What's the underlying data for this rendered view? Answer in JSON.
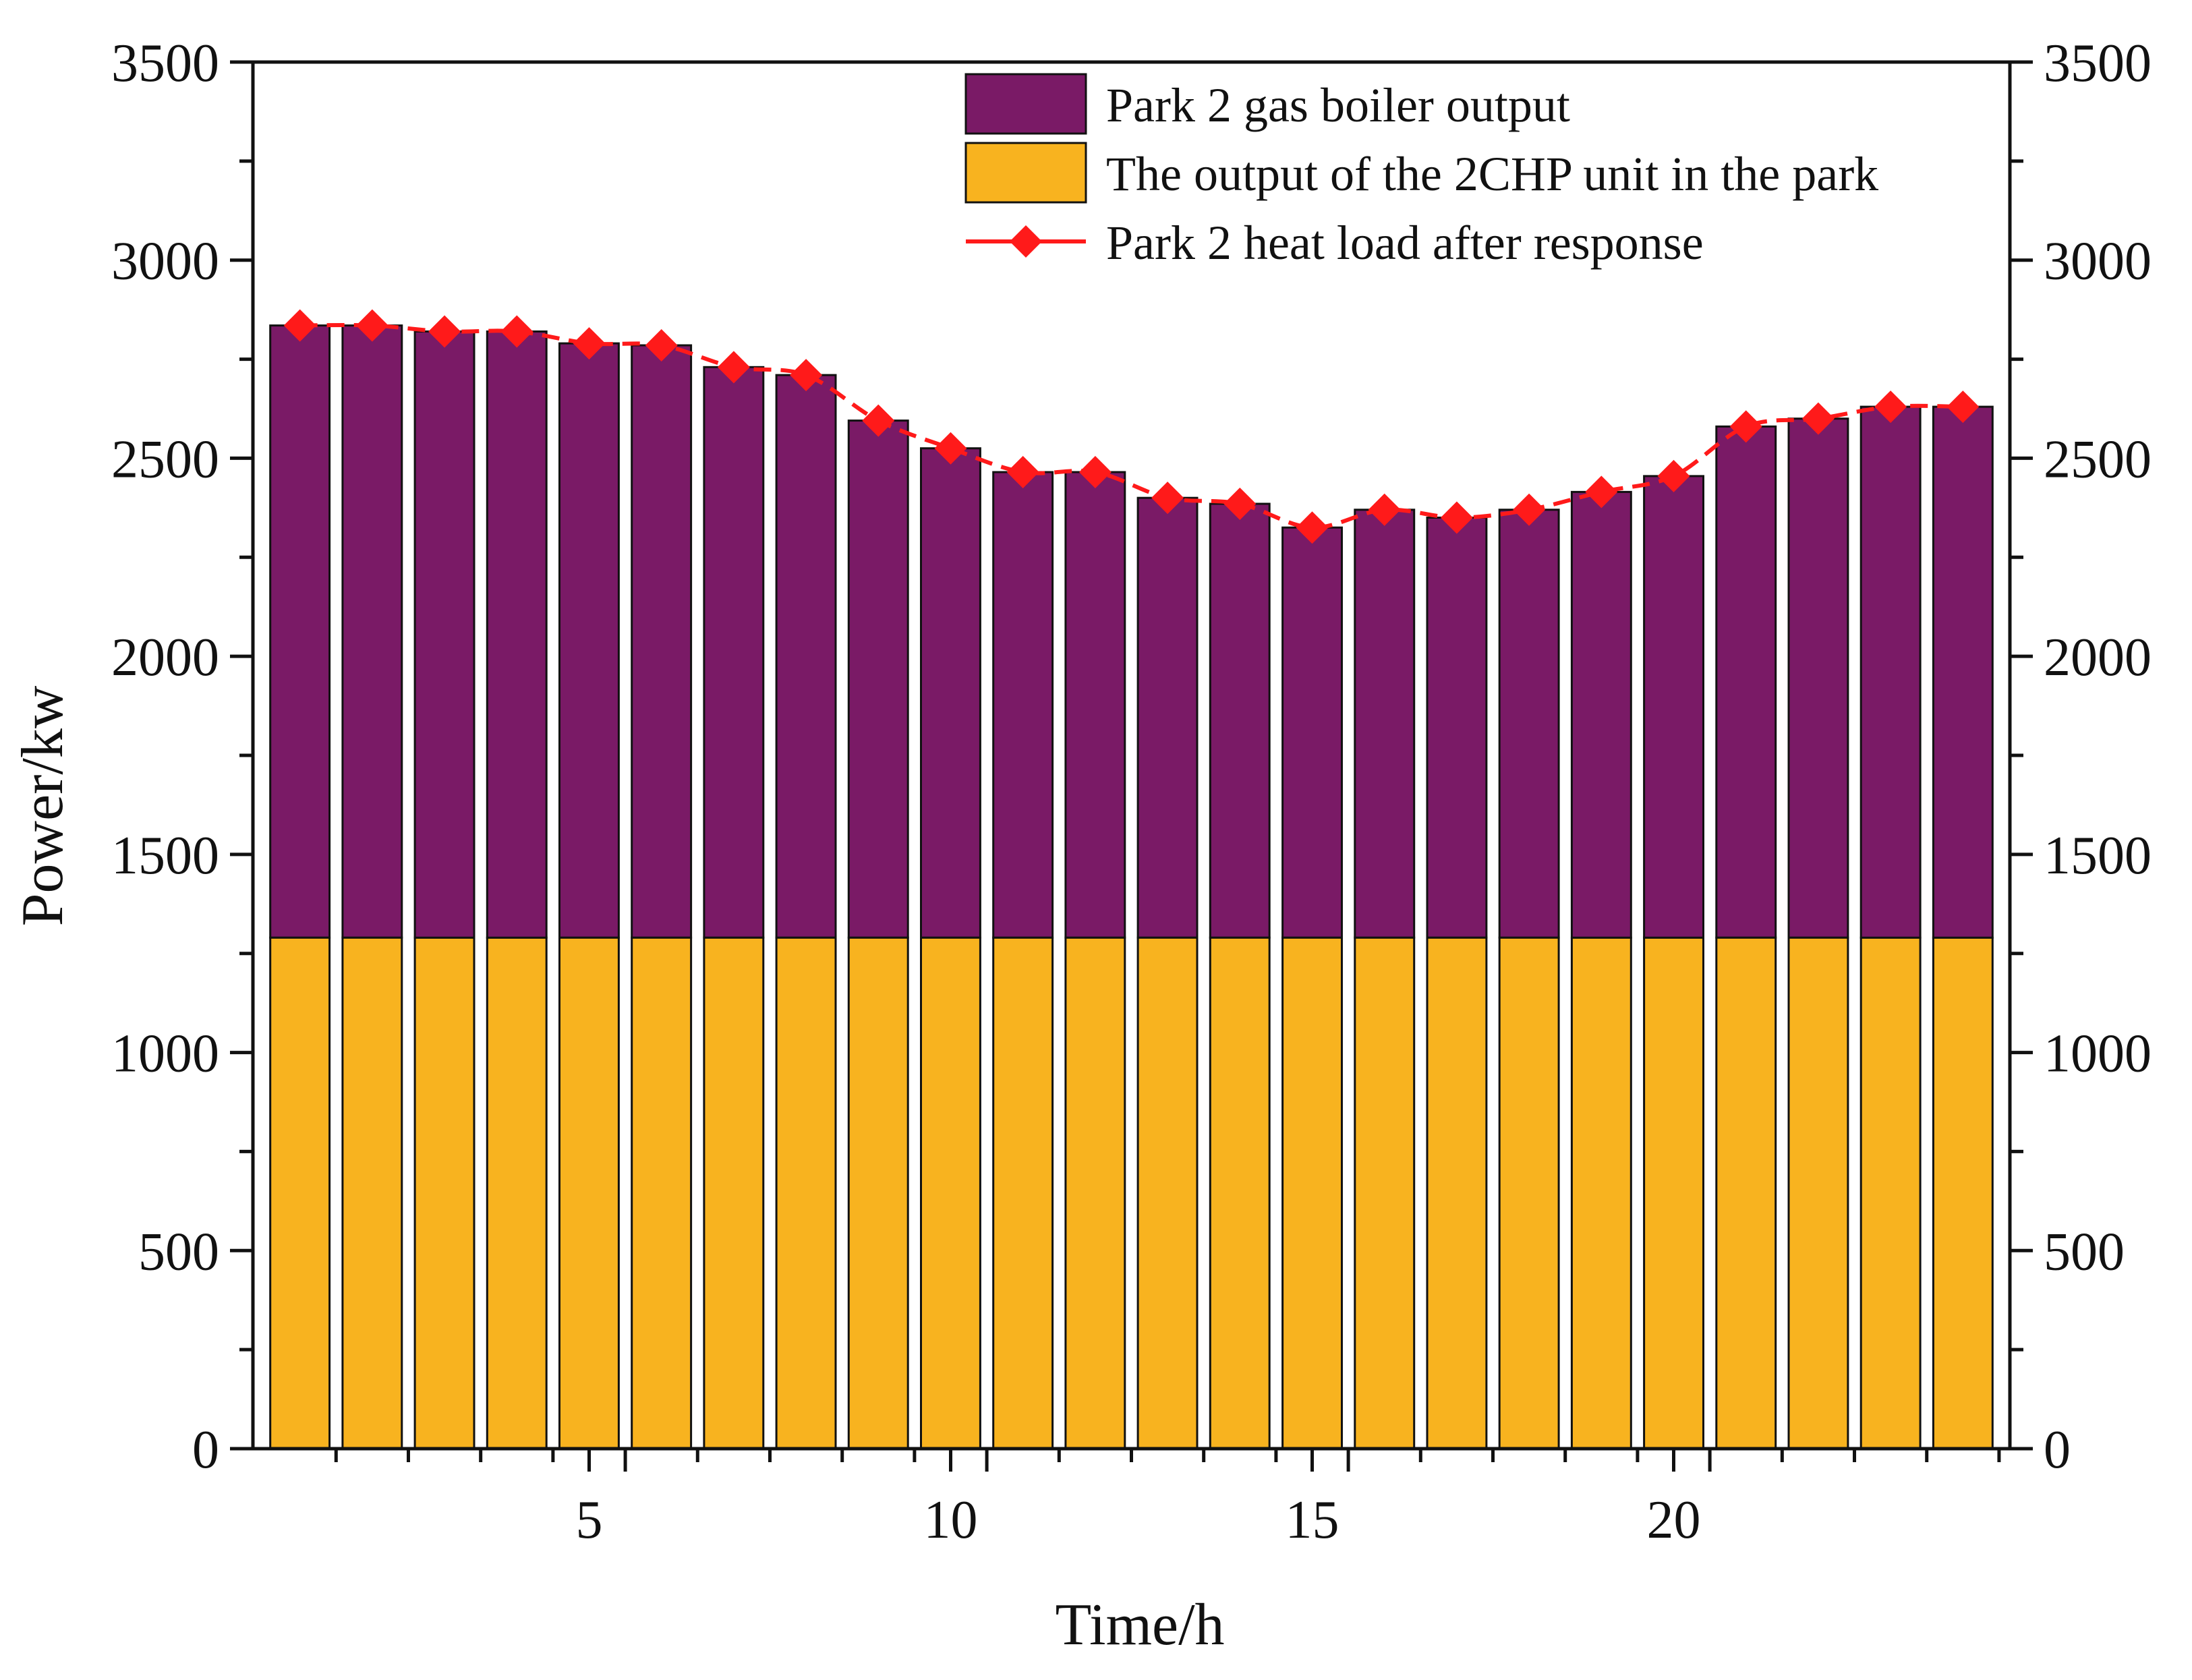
{
  "chart_data": {
    "type": "bar",
    "stacked": true,
    "x": [
      1,
      2,
      3,
      4,
      5,
      6,
      7,
      8,
      9,
      10,
      11,
      12,
      13,
      14,
      15,
      16,
      17,
      18,
      19,
      20,
      21,
      22,
      23,
      24
    ],
    "series": [
      {
        "name": "The output of the 2CHP unit in the park",
        "kind": "bar",
        "color": "#F8B31F",
        "values": [
          1290,
          1290,
          1290,
          1290,
          1290,
          1290,
          1290,
          1290,
          1290,
          1290,
          1290,
          1290,
          1290,
          1290,
          1290,
          1290,
          1290,
          1290,
          1290,
          1290,
          1290,
          1290,
          1290,
          1290
        ]
      },
      {
        "name": "Park 2 gas boiler output",
        "kind": "bar",
        "color": "#7A1A66",
        "values": [
          1545,
          1545,
          1530,
          1530,
          1500,
          1495,
          1440,
          1420,
          1305,
          1235,
          1175,
          1175,
          1110,
          1095,
          1035,
          1080,
          1060,
          1080,
          1125,
          1165,
          1290,
          1310,
          1340,
          1340
        ]
      },
      {
        "name": "Park 2 heat load after response",
        "kind": "line",
        "marker": "diamond",
        "color": "#FF1A1A",
        "values": [
          2835,
          2835,
          2820,
          2820,
          2790,
          2785,
          2730,
          2710,
          2595,
          2525,
          2465,
          2465,
          2400,
          2385,
          2325,
          2370,
          2350,
          2370,
          2415,
          2455,
          2580,
          2600,
          2630,
          2630
        ]
      }
    ],
    "xlabel": "Time/h",
    "ylabel": "Power/kw",
    "xticks": [
      5,
      10,
      15,
      20
    ],
    "yticks": [
      0,
      500,
      1000,
      1500,
      2000,
      2500,
      3000,
      3500
    ],
    "ylim": [
      0,
      3500
    ],
    "xlim": [
      0.35,
      24.65
    ],
    "y2ticks": [
      0,
      500,
      1000,
      1500,
      2000,
      2500,
      3000,
      3500
    ],
    "legend_position": "top-right",
    "legend_order": [
      1,
      0,
      2
    ]
  }
}
